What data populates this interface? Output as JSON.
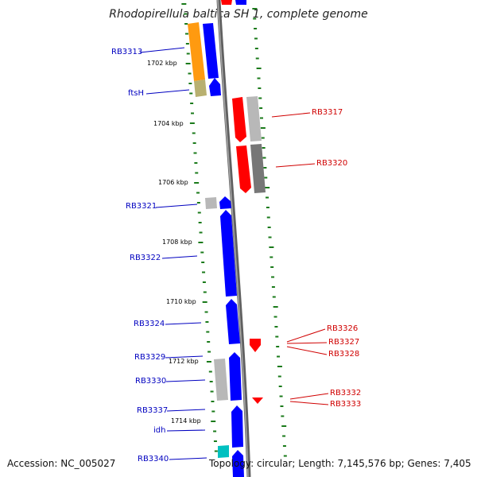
{
  "title": "Rhodopirellula baltica SH 1, complete genome",
  "footer": {
    "accession": "Accession: NC_005027",
    "stats": "Topology: circular; Length: 7,145,576 bp; Genes: 7,405"
  },
  "colors": {
    "backbone": "#808080",
    "tick": "#1a7a1a",
    "label_left": "#0000c0",
    "label_right": "#d00000",
    "blue": "#0000ff",
    "red": "#ff0000",
    "orange": "#ff9a10",
    "olive": "#b8b070",
    "light_gray": "#b8b8b8",
    "dark_gray": "#777777",
    "cyan": "#00c0c0"
  },
  "ruler_labels": [
    "1702 kbp",
    "1704 kbp",
    "1706 kbp",
    "1708 kbp",
    "1710 kbp",
    "1712 kbp",
    "1714 kbp"
  ],
  "gene_labels_left": [
    "RB3313",
    "ftsH",
    "RB3321",
    "RB3322",
    "RB3324",
    "RB3329",
    "RB3330",
    "RB3337",
    "idh",
    "RB3340"
  ],
  "gene_labels_right": [
    "RB3317",
    "RB3320",
    "RB3326",
    "RB3327",
    "RB3328",
    "RB3332",
    "RB3333"
  ]
}
